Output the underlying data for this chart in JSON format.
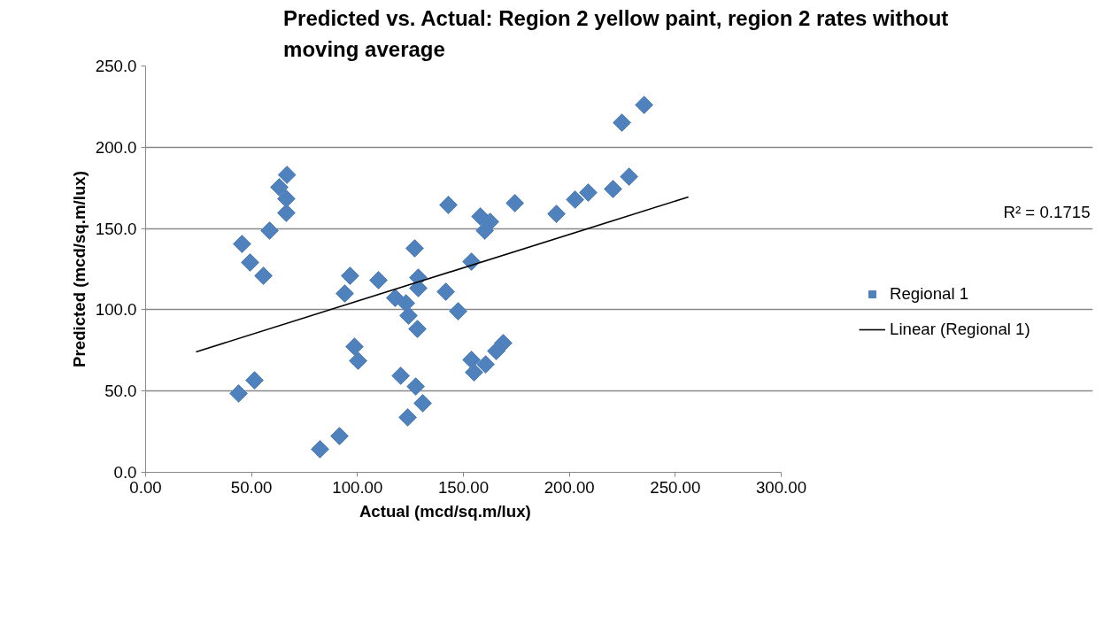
{
  "chart_data": {
    "type": "scatter",
    "title": "Predicted vs. Actual: Region 2 yellow paint, region 2  rates without moving average",
    "xlabel": "Actual (mcd/sq.m/lux)",
    "ylabel": "Predicted (mcd/sq.m/lux)",
    "xlim": [
      0,
      300
    ],
    "ylim": [
      0,
      250
    ],
    "xticks": [
      {
        "value": 0,
        "label": "0.00"
      },
      {
        "value": 50,
        "label": "50.00"
      },
      {
        "value": 100,
        "label": "100.00"
      },
      {
        "value": 150,
        "label": "150.00"
      },
      {
        "value": 200,
        "label": "200.00"
      },
      {
        "value": 250,
        "label": "250.00"
      },
      {
        "value": 300,
        "label": "300.00"
      }
    ],
    "yticks": [
      {
        "value": 0,
        "label": "0.0"
      },
      {
        "value": 50,
        "label": "50.0"
      },
      {
        "value": 100,
        "label": "100.0"
      },
      {
        "value": 150,
        "label": "150.0"
      },
      {
        "value": 200,
        "label": "200.0"
      },
      {
        "value": 250,
        "label": "250.0"
      }
    ],
    "grid": "y",
    "legend": "right",
    "series": [
      {
        "name": "Regional 1",
        "color": "#4f81bd",
        "marker": "diamond",
        "x": [
          66.7,
          63.1,
          66.4,
          66.4,
          58.5,
          45.5,
          49.3,
          55.6,
          142.9,
          127.0,
          96.5,
          94.0,
          109.9,
          117.8,
          122.9,
          124.1,
          128.7,
          128.7,
          141.7,
          147.5,
          128.3,
          98.6,
          100.3,
          120.4,
          127.5,
          130.8,
          123.7,
          91.5,
          82.3,
          43.9,
          51.4,
          158.0,
          162.6,
          160.1,
          174.3,
          193.9,
          153.8,
          153.8,
          155.0,
          160.5,
          165.5,
          168.8,
          202.7,
          208.9,
          220.6,
          228.2,
          224.8,
          235.3
        ],
        "values": [
          183.0,
          175.4,
          168.3,
          159.6,
          148.7,
          140.5,
          129.1,
          120.9,
          164.5,
          137.8,
          120.9,
          110.0,
          118.2,
          107.3,
          104.0,
          96.4,
          119.8,
          113.3,
          111.1,
          99.1,
          88.2,
          77.3,
          68.6,
          59.4,
          52.8,
          42.5,
          33.8,
          22.3,
          14.2,
          48.5,
          56.6,
          157.4,
          154.1,
          148.7,
          165.6,
          159.0,
          129.6,
          69.2,
          61.5,
          66.4,
          74.6,
          79.5,
          167.8,
          172.1,
          174.3,
          181.9,
          215.1,
          226.0
        ]
      },
      {
        "name": "Linear (Regional 1)",
        "type": "line",
        "color": "#000000",
        "x": [
          23.8,
          256.2
        ],
        "values": [
          74.1,
          169.4
        ]
      }
    ],
    "annotations": [
      "R² = 0.1715"
    ]
  }
}
